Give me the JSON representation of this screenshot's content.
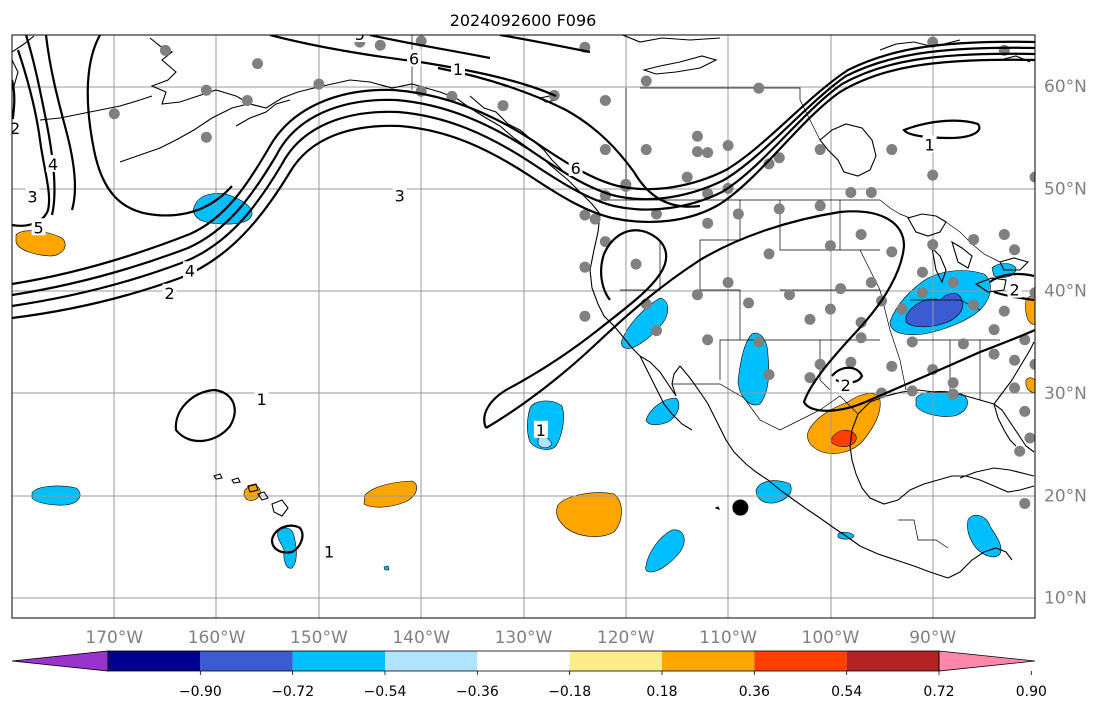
{
  "figure": {
    "title": "2024092600 F096"
  },
  "map": {
    "projection": "PlateCarree",
    "lon_range": [
      -180,
      -80
    ],
    "lat_range": [
      8,
      65
    ],
    "gridlines": true,
    "lon_ticks": [
      {
        "lon": -170,
        "label": "170°W"
      },
      {
        "lon": -160,
        "label": "160°W"
      },
      {
        "lon": -150,
        "label": "150°W"
      },
      {
        "lon": -140,
        "label": "140°W"
      },
      {
        "lon": -130,
        "label": "130°W"
      },
      {
        "lon": -120,
        "label": "120°W"
      },
      {
        "lon": -110,
        "label": "110°W"
      },
      {
        "lon": -100,
        "label": "100°W"
      },
      {
        "lon": -90,
        "label": "90°W"
      }
    ],
    "lat_ticks": [
      {
        "lat": 10,
        "label": "10°N"
      },
      {
        "lat": 20,
        "label": "20°N"
      },
      {
        "lat": 30,
        "label": "30°N"
      },
      {
        "lat": 40,
        "label": "40°N"
      },
      {
        "lat": 50,
        "label": "50°N"
      },
      {
        "lat": 60,
        "label": "60°N"
      }
    ],
    "marker": {
      "lon": -108.8,
      "lat": 18.8,
      "color": "#000000"
    },
    "station_color": "#808080",
    "stations": [
      [
        -165,
        63.5
      ],
      [
        -156,
        62.2
      ],
      [
        -161,
        59.6
      ],
      [
        -150,
        60.2
      ],
      [
        -146,
        64.3
      ],
      [
        -140,
        64.4
      ],
      [
        -144,
        64
      ],
      [
        -157,
        58.6
      ],
      [
        -170,
        57.3
      ],
      [
        -161,
        55
      ],
      [
        -140,
        59.5
      ],
      [
        -137,
        59
      ],
      [
        -124,
        63.8
      ],
      [
        -118,
        60.5
      ],
      [
        -107,
        59.8
      ],
      [
        -90,
        64.3
      ],
      [
        -83,
        63.5
      ],
      [
        -132,
        58.1
      ],
      [
        -127,
        59.1
      ],
      [
        -122,
        58.6
      ],
      [
        -113,
        55.1
      ],
      [
        -112,
        53.5
      ],
      [
        -113,
        53.6
      ],
      [
        -118,
        53.8
      ],
      [
        -110,
        54.2
      ],
      [
        -106,
        52.4
      ],
      [
        -105,
        53
      ],
      [
        -101,
        53.8
      ],
      [
        -94,
        53.8
      ],
      [
        -90,
        51.3
      ],
      [
        -80,
        51.1
      ],
      [
        -122,
        53.8
      ],
      [
        -120,
        50.4
      ],
      [
        -120,
        50.2
      ],
      [
        -114,
        51.1
      ],
      [
        -112,
        49.5
      ],
      [
        -110,
        50
      ],
      [
        -109,
        47.5
      ],
      [
        -105,
        48
      ],
      [
        -101,
        48.3
      ],
      [
        -98,
        49.6
      ],
      [
        -96,
        49.6
      ],
      [
        -122,
        49.3
      ],
      [
        -123,
        47
      ],
      [
        -122,
        44.8
      ],
      [
        -124,
        47.4
      ],
      [
        -117,
        47.5
      ],
      [
        -112,
        46.6
      ],
      [
        -106,
        43.6
      ],
      [
        -100,
        44.4
      ],
      [
        -97,
        45.5
      ],
      [
        -94,
        43.8
      ],
      [
        -91,
        41.8
      ],
      [
        -90,
        44.5
      ],
      [
        -86,
        45
      ],
      [
        -83,
        45.5
      ],
      [
        -82,
        44
      ],
      [
        -79,
        43.3
      ],
      [
        -124,
        42.3
      ],
      [
        -119,
        42.6
      ],
      [
        -118,
        38.7
      ],
      [
        -113,
        39.6
      ],
      [
        -110,
        40.8
      ],
      [
        -108,
        38.8
      ],
      [
        -104,
        39.6
      ],
      [
        -99,
        40.2
      ],
      [
        -96,
        40.8
      ],
      [
        -95,
        39
      ],
      [
        -91,
        39.8
      ],
      [
        -88,
        40.8
      ],
      [
        -86,
        38.6
      ],
      [
        -83,
        38
      ],
      [
        -80,
        39.8
      ],
      [
        -124,
        37.5
      ],
      [
        -117,
        36.1
      ],
      [
        -112,
        35.2
      ],
      [
        -107,
        35
      ],
      [
        -102,
        37.2
      ],
      [
        -100,
        38.2
      ],
      [
        -97,
        36.9
      ],
      [
        -97,
        35.4
      ],
      [
        -92,
        35
      ],
      [
        -87,
        34.8
      ],
      [
        -84,
        36.2
      ],
      [
        -81,
        35.2
      ],
      [
        -98,
        33
      ],
      [
        -94,
        32.6
      ],
      [
        -90,
        32.3
      ],
      [
        -88,
        31
      ],
      [
        -84,
        33.8
      ],
      [
        -82,
        33.2
      ],
      [
        -80,
        32.8
      ],
      [
        -106,
        31.8
      ],
      [
        -101,
        32.8
      ],
      [
        -102,
        31.5
      ],
      [
        -95,
        30
      ],
      [
        -92,
        30.2
      ],
      [
        -88,
        29.9
      ],
      [
        -82,
        30.5
      ],
      [
        -81,
        28.2
      ],
      [
        -80.5,
        25.6
      ],
      [
        -81.5,
        24.3
      ],
      [
        -93,
        38.2
      ],
      [
        -79.5,
        40.3
      ],
      [
        -81,
        19.2
      ]
    ],
    "colorbar": {
      "colors": [
        "#9933cc",
        "#000090",
        "#3b5bd2",
        "#00bfff",
        "#b0e3ff",
        "#ffffff",
        "#ffee88",
        "#ffa500",
        "#ff4000",
        "#b22222",
        "#ff88aa"
      ],
      "tick_labels": [
        "−0.90",
        "−0.72",
        "−0.54",
        "−0.36",
        "−0.18",
        "0.18",
        "0.36",
        "0.54",
        "0.72",
        "0.90"
      ],
      "extend": "both"
    },
    "contour_labels": [
      {
        "text": "6",
        "lon": -140.7,
        "lat": 62.6
      },
      {
        "text": "5",
        "lon": -146,
        "lat": 65
      },
      {
        "text": "4",
        "lon": -176,
        "lat": 52.3
      },
      {
        "text": "3",
        "lon": -178,
        "lat": 49.1
      },
      {
        "text": "2",
        "lon": -179.7,
        "lat": 55.8
      },
      {
        "text": "5",
        "lon": -177.4,
        "lat": 46.1
      },
      {
        "text": "4",
        "lon": -162.6,
        "lat": 41.9
      },
      {
        "text": "2",
        "lon": -164.6,
        "lat": 39.7
      },
      {
        "text": "3",
        "lon": -142.1,
        "lat": 49.2
      },
      {
        "text": "1",
        "lon": -90.3,
        "lat": 54.2
      },
      {
        "text": "2",
        "lon": -82,
        "lat": 40
      },
      {
        "text": "6",
        "lon": -124.9,
        "lat": 51.9
      },
      {
        "text": "1",
        "lon": -136.4,
        "lat": 61.6
      },
      {
        "text": "1",
        "lon": -155.6,
        "lat": 29.3
      },
      {
        "text": "1",
        "lon": -149,
        "lat": 14.4
      },
      {
        "text": "1",
        "lon": -128.3,
        "lat": 26.3
      },
      {
        "text": "2",
        "lon": -98.5,
        "lat": 30.7
      }
    ]
  }
}
